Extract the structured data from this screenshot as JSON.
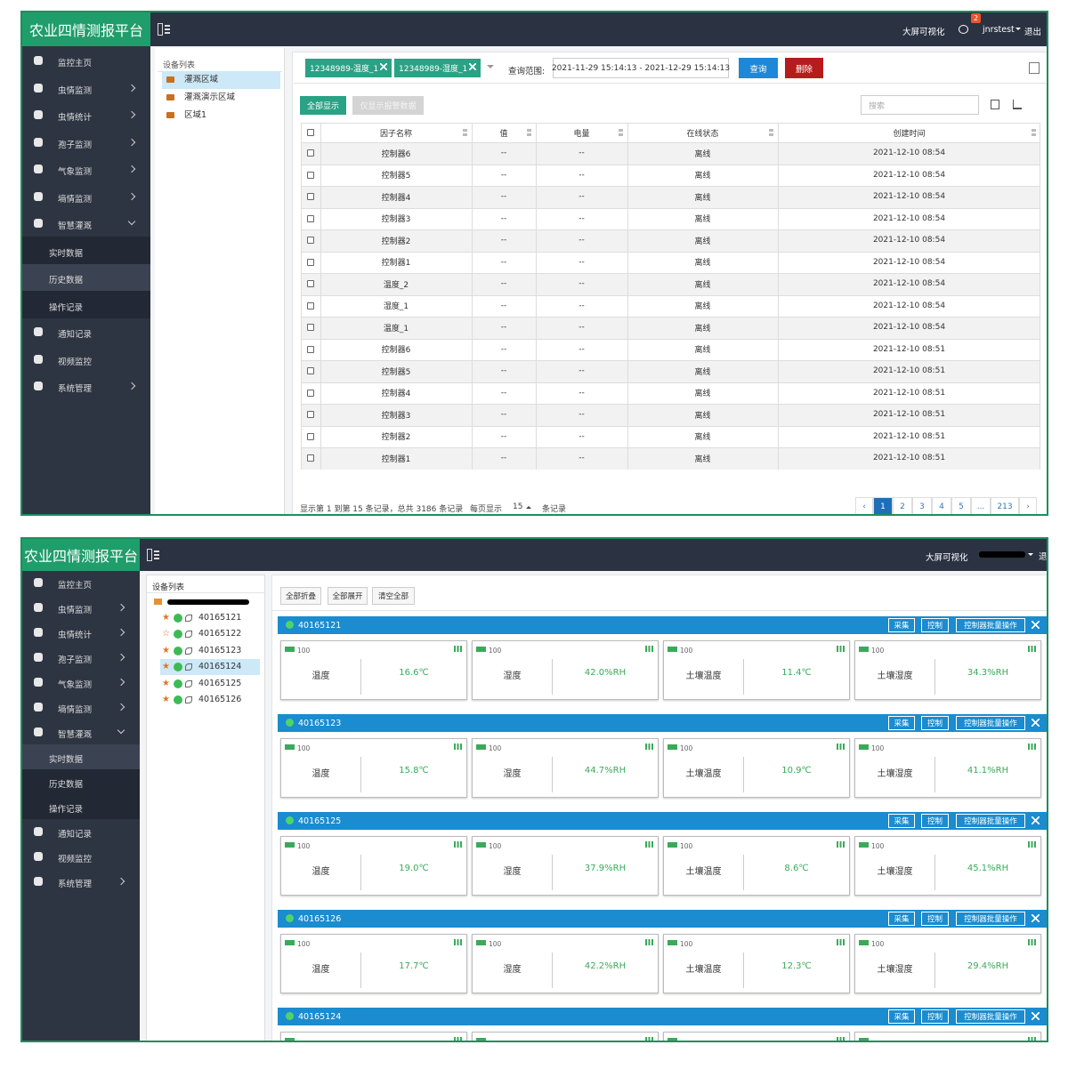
{
  "app": {
    "title": "农业四情测报平台",
    "big_screen": "大屏可视化",
    "logout": "退出",
    "menu": [
      {
        "label": "监控主页",
        "expandable": false
      },
      {
        "label": "虫情监测",
        "expandable": true
      },
      {
        "label": "虫情统计",
        "expandable": true
      },
      {
        "label": "孢子监测",
        "expandable": true
      },
      {
        "label": "气象监测",
        "expandable": true
      },
      {
        "label": "墒情监测",
        "expandable": true
      },
      {
        "label": "智慧灌溉",
        "expandable": true
      }
    ],
    "submenu": [
      "实时数据",
      "历史数据",
      "操作记录"
    ],
    "menu_after": [
      {
        "label": "通知记录",
        "expandable": false
      },
      {
        "label": "视频监控",
        "expandable": false
      },
      {
        "label": "系统管理",
        "expandable": true
      }
    ]
  },
  "history_page": {
    "user": "jnrstest",
    "badge": "2",
    "active_submenu": 1,
    "tree_title": "设备列表",
    "tree": [
      "灌溉区域",
      "灌溉演示区域",
      "区域1"
    ],
    "tags": [
      "12348989-温度_1",
      "12348989-湿度_1"
    ],
    "range_label": "查询范围:",
    "range": "2021-11-29 15:14:13 - 2021-12-29 15:14:13",
    "query": "查询",
    "delete": "删除",
    "show_all": "全部显示",
    "alarm_only": "仅显示报警数据",
    "search_placeholder": "搜索",
    "columns": [
      "因子名称",
      "值",
      "电量",
      "在线状态",
      "创建时间"
    ],
    "rows": [
      [
        "控制器6",
        "--",
        "--",
        "离线",
        "2021-12-10 08:54"
      ],
      [
        "控制器5",
        "--",
        "--",
        "离线",
        "2021-12-10 08:54"
      ],
      [
        "控制器4",
        "--",
        "--",
        "离线",
        "2021-12-10 08:54"
      ],
      [
        "控制器3",
        "--",
        "--",
        "离线",
        "2021-12-10 08:54"
      ],
      [
        "控制器2",
        "--",
        "--",
        "离线",
        "2021-12-10 08:54"
      ],
      [
        "控制器1",
        "--",
        "--",
        "离线",
        "2021-12-10 08:54"
      ],
      [
        "温度_2",
        "--",
        "--",
        "离线",
        "2021-12-10 08:54"
      ],
      [
        "湿度_1",
        "--",
        "--",
        "离线",
        "2021-12-10 08:54"
      ],
      [
        "温度_1",
        "--",
        "--",
        "离线",
        "2021-12-10 08:54"
      ],
      [
        "控制器6",
        "--",
        "--",
        "离线",
        "2021-12-10 08:51"
      ],
      [
        "控制器5",
        "--",
        "--",
        "离线",
        "2021-12-10 08:51"
      ],
      [
        "控制器4",
        "--",
        "--",
        "离线",
        "2021-12-10 08:51"
      ],
      [
        "控制器3",
        "--",
        "--",
        "离线",
        "2021-12-10 08:51"
      ],
      [
        "控制器2",
        "--",
        "--",
        "离线",
        "2021-12-10 08:51"
      ],
      [
        "控制器1",
        "--",
        "--",
        "离线",
        "2021-12-10 08:51"
      ]
    ],
    "footer": {
      "summary": "显示第 1 到第 15 条记录，总共 3186 条记录",
      "per_page_label": "每页显示",
      "page_size": "15",
      "per_page_unit": "条记录"
    },
    "pagination": [
      "‹",
      "1",
      "2",
      "3",
      "4",
      "5",
      "...",
      "213",
      "›"
    ],
    "active_page": 1
  },
  "realtime_page": {
    "active_submenu": 0,
    "tree_title": "设备列表",
    "devices": [
      {
        "id": "40165121",
        "starred": true
      },
      {
        "id": "40165122",
        "starred": false
      },
      {
        "id": "40165123",
        "starred": true
      },
      {
        "id": "40165124",
        "starred": true
      },
      {
        "id": "40165125",
        "starred": true
      },
      {
        "id": "40165126",
        "starred": true
      }
    ],
    "selected_device": 3,
    "toolbar": [
      "全部折叠",
      "全部展开",
      "清空全部"
    ],
    "group_buttons": [
      "采集",
      "控制",
      "控制器批量操作"
    ],
    "groups": [
      {
        "id": "40165121",
        "sensors": [
          {
            "battery": "100",
            "label": "温度",
            "value": "16.6℃"
          },
          {
            "battery": "100",
            "label": "湿度",
            "value": "42.0%RH"
          },
          {
            "battery": "100",
            "label": "土壤温度",
            "value": "11.4℃"
          },
          {
            "battery": "100",
            "label": "土壤湿度",
            "value": "34.3%RH"
          }
        ]
      },
      {
        "id": "40165123",
        "sensors": [
          {
            "battery": "100",
            "label": "温度",
            "value": "15.8℃"
          },
          {
            "battery": "100",
            "label": "湿度",
            "value": "44.7%RH"
          },
          {
            "battery": "100",
            "label": "土壤温度",
            "value": "10.9℃"
          },
          {
            "battery": "100",
            "label": "土壤湿度",
            "value": "41.1%RH"
          }
        ]
      },
      {
        "id": "40165125",
        "sensors": [
          {
            "battery": "100",
            "label": "温度",
            "value": "19.0℃"
          },
          {
            "battery": "100",
            "label": "湿度",
            "value": "37.9%RH"
          },
          {
            "battery": "100",
            "label": "土壤温度",
            "value": "8.6℃"
          },
          {
            "battery": "100",
            "label": "土壤湿度",
            "value": "45.1%RH"
          }
        ]
      },
      {
        "id": "40165126",
        "sensors": [
          {
            "battery": "100",
            "label": "温度",
            "value": "17.7℃"
          },
          {
            "battery": "100",
            "label": "湿度",
            "value": "42.2%RH"
          },
          {
            "battery": "100",
            "label": "土壤温度",
            "value": "12.3℃"
          },
          {
            "battery": "100",
            "label": "土壤湿度",
            "value": "29.4%RH"
          }
        ]
      },
      {
        "id": "40165124",
        "sensors": []
      }
    ]
  }
}
